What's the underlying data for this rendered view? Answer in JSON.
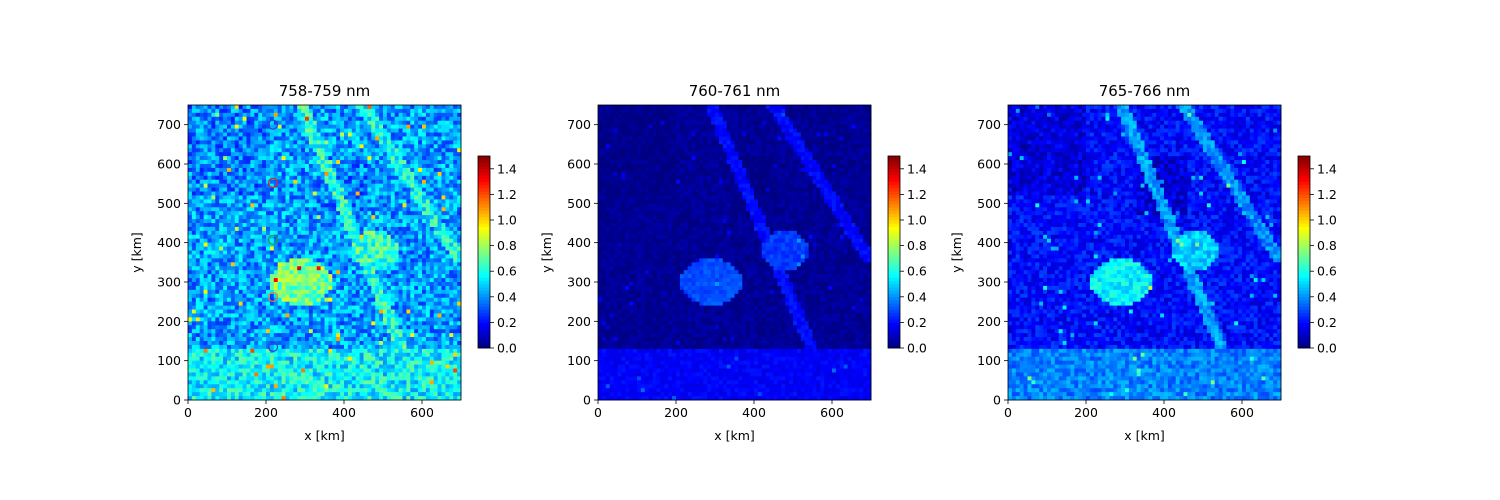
{
  "chart_data": [
    {
      "type": "heatmap",
      "title": "758-759 nm",
      "xlabel": "x [km]",
      "ylabel": "y [km]",
      "xlim": [
        0,
        700
      ],
      "ylim": [
        0,
        750
      ],
      "xticks": [
        "0",
        "200",
        "400",
        "600"
      ],
      "yticks": [
        "0",
        "100",
        "200",
        "300",
        "400",
        "500",
        "600",
        "700"
      ],
      "colormap": "jet",
      "clim": [
        0,
        1.5
      ],
      "colorbar_ticks": [
        "0.0",
        "0.2",
        "0.4",
        "0.6",
        "0.8",
        "1.0",
        "1.2",
        "1.4"
      ],
      "field": {
        "background": 0.42,
        "clear_region": 0.38,
        "streak": 0.62,
        "cloud": 0.72,
        "noise": 0.32
      },
      "markers": [
        {
          "x": 218,
          "y": 700,
          "color": "#3b3bd6"
        },
        {
          "x": 218,
          "y": 552,
          "color": "#d62728"
        },
        {
          "x": 218,
          "y": 407,
          "color": "#2ca02c"
        },
        {
          "x": 218,
          "y": 262,
          "color": "#ff7f0e"
        },
        {
          "x": 218,
          "y": 135,
          "color": "#3b3bd6"
        }
      ]
    },
    {
      "type": "heatmap",
      "title": "760-761 nm",
      "xlabel": "x [km]",
      "ylabel": "y [km]",
      "xlim": [
        0,
        700
      ],
      "ylim": [
        0,
        750
      ],
      "xticks": [
        "0",
        "200",
        "400",
        "600"
      ],
      "yticks": [
        "0",
        "100",
        "200",
        "300",
        "400",
        "500",
        "600",
        "700"
      ],
      "colormap": "jet",
      "clim": [
        0,
        1.5
      ],
      "colorbar_ticks": [
        "0.0",
        "0.2",
        "0.4",
        "0.6",
        "0.8",
        "1.0",
        "1.2",
        "1.4"
      ],
      "field": {
        "background": 0.03,
        "clear_region": 0.01,
        "streak": 0.2,
        "cloud": 0.3,
        "noise": 0.08
      },
      "markers": []
    },
    {
      "type": "heatmap",
      "title": "765-766 nm",
      "xlabel": "x [km]",
      "ylabel": "y [km]",
      "xlim": [
        0,
        700
      ],
      "ylim": [
        0,
        750
      ],
      "xticks": [
        "0",
        "200",
        "400",
        "600"
      ],
      "yticks": [
        "0",
        "100",
        "200",
        "300",
        "400",
        "500",
        "600",
        "700"
      ],
      "colormap": "jet",
      "clim": [
        0,
        1.5
      ],
      "colorbar_ticks": [
        "0.0",
        "0.2",
        "0.4",
        "0.6",
        "0.8",
        "1.0",
        "1.2",
        "1.4"
      ],
      "field": {
        "background": 0.2,
        "clear_region": 0.13,
        "streak": 0.42,
        "cloud": 0.55,
        "noise": 0.18
      },
      "markers": []
    }
  ]
}
